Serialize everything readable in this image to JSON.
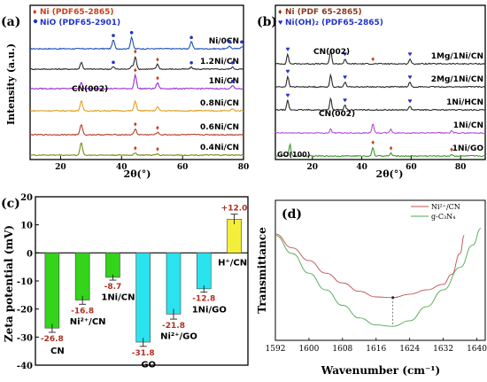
{
  "chart_data": [
    {
      "panel": "(a)",
      "type": "line",
      "xlabel": "2θ(°)",
      "ylabel": "Intensity (a.u.)",
      "xlim": [
        10,
        80
      ],
      "xticks": [
        "20",
        "40",
        "60",
        "80"
      ],
      "legend": [
        {
          "marker": "diamond",
          "color": "#c8401a",
          "label": "Ni (PDF65-2865)"
        },
        {
          "marker": "dot",
          "color": "#2233cc",
          "label": "NiO (PDF65-2901)"
        }
      ],
      "series": [
        {
          "name": "Ni/0CN",
          "color": "#1e4fb5",
          "peaks": [
            [
              37.3,
              0.45
            ],
            [
              43.3,
              0.6
            ],
            [
              62.9,
              0.35
            ],
            [
              75.4,
              0.15
            ],
            [
              79.4,
              0.12
            ]
          ]
        },
        {
          "name": "1.2Ni/CN",
          "color": "#2a2a2a",
          "peaks": [
            [
              26.8,
              0.35
            ],
            [
              44.5,
              0.65
            ],
            [
              51.8,
              0.25
            ],
            [
              37.3,
              0.12
            ],
            [
              43.3,
              0.15
            ],
            [
              62.9,
              0.1
            ],
            [
              76.4,
              0.1
            ]
          ]
        },
        {
          "name": "1Ni/CN",
          "color": "#9b2fd6",
          "peaks": [
            [
              26.8,
              0.3
            ],
            [
              44.5,
              0.7
            ],
            [
              51.8,
              0.3
            ],
            [
              76.4,
              0.15
            ]
          ]
        },
        {
          "name": "0.8Ni/CN",
          "color": "#e0a020",
          "peaks": [
            [
              26.8,
              0.5
            ],
            [
              44.5,
              0.5
            ],
            [
              51.8,
              0.2
            ],
            [
              76.4,
              0.1
            ]
          ]
        },
        {
          "name": "0.6Ni/CN",
          "color": "#b83a2a",
          "peaks": [
            [
              26.8,
              0.55
            ],
            [
              44.5,
              0.3
            ],
            [
              51.8,
              0.12
            ]
          ]
        },
        {
          "name": "0.4Ni/CN",
          "color": "#7a8a1a",
          "peaks": [
            [
              26.8,
              0.65
            ],
            [
              44.5,
              0.12
            ],
            [
              51.8,
              0.06
            ]
          ]
        }
      ],
      "annotations": [
        "CN(002)"
      ]
    },
    {
      "panel": "(b)",
      "type": "line",
      "xlabel": "2θ(°)",
      "ylabel": "Intensity (a.u.)",
      "xlim": [
        5,
        90
      ],
      "xticks": [
        "20",
        "40",
        "60",
        "80"
      ],
      "legend": [
        {
          "marker": "diamond",
          "color": "#8b3a1a",
          "label": "Ni (PDF 65-2865)"
        },
        {
          "marker": "heart",
          "color": "#2233cc",
          "label": "Ni(OH)₂ (PDF65-2865)"
        }
      ],
      "series": [
        {
          "name": "1Mg/1Ni/CN",
          "color": "#2a2a2a",
          "peaks": [
            [
              10,
              0.5
            ],
            [
              27.4,
              0.7
            ],
            [
              33.2,
              0.25
            ],
            [
              59.5,
              0.25
            ]
          ]
        },
        {
          "name": "2Mg/1Ni/CN",
          "color": "#2a2a2a",
          "peaks": [
            [
              10,
              0.55
            ],
            [
              27.4,
              0.6
            ],
            [
              33.2,
              0.25
            ],
            [
              59.5,
              0.25
            ]
          ]
        },
        {
          "name": "1Ni/HCN",
          "color": "#2a2a2a",
          "peaks": [
            [
              10,
              0.5
            ],
            [
              27.4,
              0.6
            ],
            [
              33.2,
              0.25
            ],
            [
              59.5,
              0.2
            ]
          ]
        },
        {
          "name": "1Ni/CN",
          "color": "#b04ed8",
          "peaks": [
            [
              27.4,
              0.2
            ],
            [
              44.5,
              0.5
            ],
            [
              51.8,
              0.2
            ],
            [
              76.4,
              0.1
            ]
          ]
        },
        {
          "name": "1Ni/GO",
          "color": "#3a9a2a",
          "peaks": [
            [
              10.9,
              0.6
            ],
            [
              44.5,
              0.45
            ],
            [
              51.8,
              0.15
            ],
            [
              76.4,
              0.08
            ]
          ]
        }
      ],
      "annotations": [
        "CN(002)",
        "CN(002)",
        "GO(100)"
      ]
    },
    {
      "panel": "(c)",
      "type": "bar",
      "ylabel": "Zeta potential (mV)",
      "ylim": [
        -40,
        20
      ],
      "yticks": [
        -40,
        -30,
        -20,
        -10,
        0,
        10,
        20
      ],
      "categories": [
        "CN",
        "Ni²⁺/CN",
        "1Ni/CN",
        "GO",
        "Ni²⁺/GO",
        "1Ni/GO",
        "H⁺/CN"
      ],
      "values": [
        -26.8,
        -16.8,
        -8.7,
        -31.8,
        -21.8,
        -12.8,
        12.0
      ],
      "value_labels": [
        "-26.8",
        "-16.8",
        "-8.7",
        "-31.8",
        "-21.8",
        "-12.8",
        "+12.0"
      ],
      "errors": [
        1.5,
        1.5,
        1.0,
        1.5,
        1.8,
        1.2,
        1.8
      ],
      "colors": [
        "#33d41a",
        "#33d41a",
        "#33d41a",
        "#29e3ee",
        "#29e3ee",
        "#29e3ee",
        "#f4ef3a"
      ]
    },
    {
      "panel": "(d)",
      "type": "line",
      "xlabel": "Wavenumber (cm⁻¹)",
      "ylabel": "Transmittance",
      "xlim": [
        1592,
        1642
      ],
      "xticks": [
        1592,
        1600,
        1608,
        1616,
        1624,
        1632,
        1640
      ],
      "series": [
        {
          "name": "Ni²⁺/CN",
          "color": "#c05050",
          "x": [
            1592,
            1596,
            1600,
            1604,
            1608,
            1612,
            1616,
            1620,
            1624,
            1628,
            1632,
            1634,
            1636,
            1637
          ],
          "y": [
            0.76,
            0.66,
            0.57,
            0.48,
            0.41,
            0.35,
            0.31,
            0.305,
            0.33,
            0.36,
            0.4,
            0.47,
            0.62,
            0.75
          ]
        },
        {
          "name": "g-C₃N₄",
          "color": "#50a850",
          "x": [
            1592,
            1596,
            1600,
            1604,
            1608,
            1612,
            1616,
            1620,
            1624,
            1628,
            1632,
            1636,
            1639,
            1641
          ],
          "y": [
            0.75,
            0.62,
            0.48,
            0.36,
            0.25,
            0.16,
            0.11,
            0.1,
            0.14,
            0.24,
            0.36,
            0.52,
            0.68,
            0.8
          ]
        }
      ],
      "marked_x": 1620
    }
  ]
}
